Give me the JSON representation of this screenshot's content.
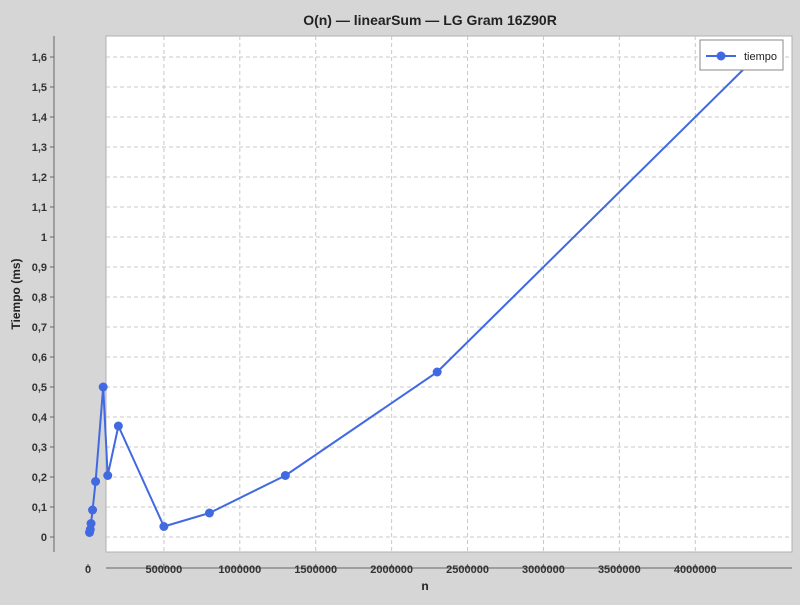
{
  "chart_data": {
    "type": "line",
    "title": "O(n) — linearSum — LG Gram 16Z90R",
    "xlabel": "n",
    "ylabel": "Tiempo (ms)",
    "xlim": [
      0,
      4400000
    ],
    "ylim": [
      -0.05,
      1.67
    ],
    "x_ticks": [
      0,
      500000,
      1000000,
      1500000,
      2000000,
      2500000,
      3000000,
      3500000,
      4000000
    ],
    "y_ticks": [
      0,
      0.1,
      0.2,
      0.3,
      0.4,
      0.5,
      0.6,
      0.7,
      0.8,
      0.9,
      1,
      1.1,
      1.2,
      1.3,
      1.4,
      1.5,
      1.6
    ],
    "y_tick_labels": [
      "0",
      "0,1",
      "0,2",
      "0,3",
      "0,4",
      "0,5",
      "0,6",
      "0,7",
      "0,8",
      "0,9",
      "1",
      "1,1",
      "1,2",
      "1,3",
      "1,4",
      "1,5",
      "1,6"
    ],
    "grid": true,
    "legend_position": "top-right",
    "series": [
      {
        "name": "tiempo",
        "color": "#4169e1",
        "x": [
          10000,
          15000,
          20000,
          30000,
          50000,
          100000,
          130000,
          200000,
          500000,
          800000,
          1300000,
          2300000,
          4400000
        ],
        "y": [
          0.015,
          0.025,
          0.045,
          0.09,
          0.185,
          0.5,
          0.205,
          0.37,
          0.035,
          0.08,
          0.205,
          0.55,
          1.6
        ]
      }
    ]
  }
}
